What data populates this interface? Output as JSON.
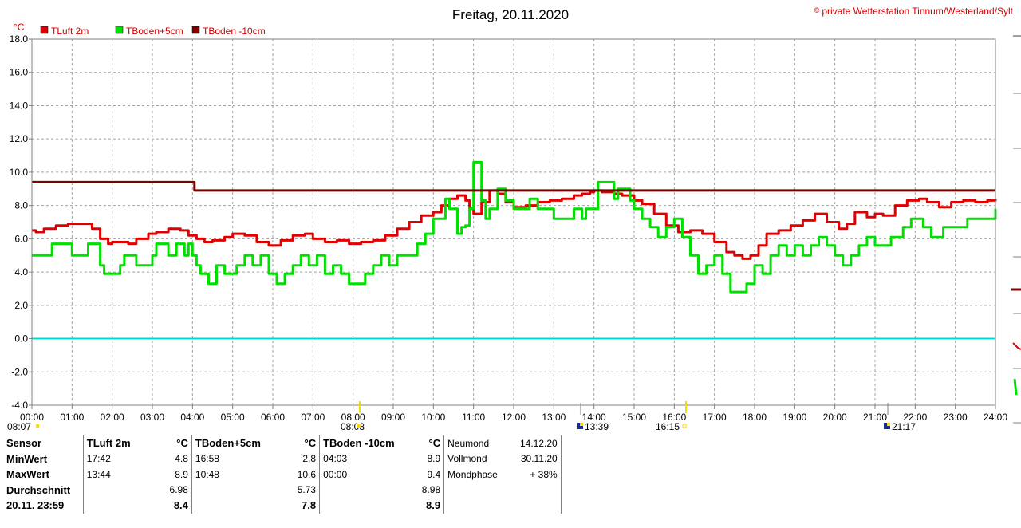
{
  "header": {
    "title": "Freitag, 20.11.2020",
    "copyright_symbol": "©",
    "copyright_text": "private Wetterstation Tinnum/Westerland/Sylt"
  },
  "chart_data": {
    "type": "line",
    "ylabel": "°C",
    "ylim": [
      -4,
      18
    ],
    "yticks": [
      "18.0",
      "16.0",
      "14.0",
      "12.0",
      "10.0",
      "8.0",
      "6.0",
      "4.0",
      "2.0",
      "0.0",
      "-2.0",
      "-4.0"
    ],
    "xlim": [
      0,
      24
    ],
    "xticks": [
      "00:00",
      "01:00",
      "02:00",
      "03:00",
      "04:00",
      "05:00",
      "06:00",
      "07:00",
      "08:00",
      "09:00",
      "10:00",
      "11:00",
      "12:00",
      "13:00",
      "14:00",
      "15:00",
      "16:00",
      "17:00",
      "18:00",
      "19:00",
      "20:00",
      "21:00",
      "22:00",
      "23:00",
      "24:00"
    ],
    "grid": true,
    "legend_position": "top-left",
    "zero_line": {
      "y": 0,
      "color": "#00d8d8"
    },
    "series": [
      {
        "name": "TLuft 2m",
        "color": "#e00000",
        "x": [
          0,
          0.1,
          0.3,
          0.6,
          0.9,
          1.2,
          1.5,
          1.7,
          1.9,
          2.0,
          2.2,
          2.4,
          2.6,
          2.9,
          3.1,
          3.4,
          3.7,
          3.9,
          4.1,
          4.3,
          4.5,
          4.8,
          5.0,
          5.3,
          5.6,
          5.9,
          6.2,
          6.5,
          6.8,
          7.0,
          7.3,
          7.6,
          7.9,
          8.2,
          8.5,
          8.8,
          9.1,
          9.4,
          9.7,
          10.0,
          10.2,
          10.4,
          10.6,
          10.8,
          10.9,
          11.0,
          11.2,
          11.4,
          11.6,
          11.8,
          12.0,
          12.3,
          12.6,
          12.9,
          13.2,
          13.5,
          13.7,
          13.9,
          14.0,
          14.2,
          14.5,
          14.7,
          15.0,
          15.2,
          15.5,
          15.8,
          16.1,
          16.4,
          16.7,
          17.0,
          17.3,
          17.5,
          17.7,
          17.9,
          18.1,
          18.3,
          18.6,
          18.9,
          19.2,
          19.5,
          19.8,
          20.1,
          20.3,
          20.5,
          20.8,
          21.0,
          21.2,
          21.5,
          21.8,
          22.1,
          22.3,
          22.6,
          22.9,
          23.2,
          23.5,
          23.8,
          24.0
        ],
        "values": [
          6.5,
          6.4,
          6.6,
          6.8,
          6.9,
          6.9,
          6.6,
          6.0,
          5.7,
          5.8,
          5.8,
          5.7,
          6.0,
          6.3,
          6.4,
          6.6,
          6.5,
          6.2,
          6.0,
          5.8,
          5.9,
          6.1,
          6.3,
          6.2,
          5.8,
          5.6,
          5.9,
          6.2,
          6.3,
          6.0,
          5.8,
          5.9,
          5.7,
          5.8,
          5.9,
          6.2,
          6.6,
          7.0,
          7.4,
          7.6,
          8.0,
          8.4,
          8.6,
          8.3,
          7.8,
          7.5,
          8.2,
          8.9,
          8.7,
          8.2,
          7.9,
          8.0,
          8.2,
          8.3,
          8.4,
          8.6,
          8.7,
          8.8,
          8.9,
          8.8,
          8.7,
          8.6,
          8.3,
          8.1,
          7.5,
          6.8,
          6.4,
          6.5,
          6.3,
          5.8,
          5.2,
          5.0,
          4.8,
          5.0,
          5.6,
          6.3,
          6.5,
          6.8,
          7.1,
          7.5,
          7.0,
          6.6,
          6.9,
          7.6,
          7.3,
          7.5,
          7.4,
          8.0,
          8.3,
          8.4,
          8.2,
          7.9,
          8.2,
          8.3,
          8.2,
          8.3,
          8.4
        ]
      },
      {
        "name": "TBoden+5cm",
        "color": "#00e000",
        "x": [
          0,
          0.4,
          0.5,
          0.9,
          1.0,
          1.4,
          1.5,
          1.7,
          1.8,
          2.0,
          2.2,
          2.3,
          2.6,
          2.8,
          3.0,
          3.1,
          3.4,
          3.6,
          3.8,
          3.9,
          4.0,
          4.1,
          4.2,
          4.4,
          4.6,
          4.8,
          5.1,
          5.3,
          5.5,
          5.7,
          5.9,
          6.1,
          6.3,
          6.5,
          6.7,
          6.9,
          7.1,
          7.3,
          7.5,
          7.7,
          7.9,
          8.1,
          8.3,
          8.5,
          8.7,
          8.9,
          9.1,
          9.3,
          9.6,
          9.8,
          10.0,
          10.1,
          10.3,
          10.4,
          10.6,
          10.7,
          10.8,
          10.9,
          11.0,
          11.2,
          11.3,
          11.4,
          11.6,
          11.8,
          12.0,
          12.2,
          12.4,
          12.6,
          12.8,
          13.0,
          13.2,
          13.5,
          13.7,
          13.8,
          14.1,
          14.3,
          14.5,
          14.6,
          14.9,
          15.0,
          15.2,
          15.4,
          15.6,
          15.8,
          16.0,
          16.2,
          16.4,
          16.6,
          16.8,
          17.0,
          17.2,
          17.4,
          17.6,
          17.8,
          18.0,
          18.2,
          18.4,
          18.6,
          18.8,
          19.0,
          19.2,
          19.4,
          19.6,
          19.8,
          20.0,
          20.2,
          20.4,
          20.6,
          20.8,
          21.0,
          21.2,
          21.4,
          21.7,
          21.9,
          22.2,
          22.4,
          22.7,
          23.0,
          23.3,
          23.5,
          23.8,
          24.0
        ],
        "values": [
          5.0,
          5.0,
          5.7,
          5.7,
          5.0,
          5.7,
          5.7,
          4.4,
          3.9,
          3.9,
          4.4,
          5.0,
          4.4,
          4.4,
          5.0,
          5.7,
          5.0,
          5.7,
          5.0,
          5.7,
          5.0,
          4.4,
          3.9,
          3.3,
          4.4,
          3.9,
          4.4,
          5.0,
          4.4,
          5.0,
          3.9,
          3.3,
          3.9,
          4.4,
          5.0,
          4.4,
          5.0,
          3.9,
          4.4,
          3.9,
          3.3,
          3.3,
          3.9,
          4.4,
          5.0,
          4.4,
          5.0,
          5.0,
          5.7,
          6.3,
          7.2,
          7.2,
          8.4,
          7.8,
          6.3,
          6.7,
          6.8,
          7.8,
          10.6,
          8.3,
          7.2,
          7.8,
          9.0,
          8.3,
          7.8,
          7.8,
          8.4,
          7.8,
          7.8,
          7.2,
          7.2,
          7.8,
          7.2,
          7.8,
          9.4,
          9.4,
          8.4,
          9.0,
          8.3,
          7.8,
          7.2,
          6.7,
          6.1,
          6.7,
          7.2,
          6.1,
          5.0,
          3.9,
          4.4,
          5.0,
          3.9,
          2.8,
          2.8,
          3.3,
          4.4,
          3.9,
          5.0,
          5.6,
          5.0,
          5.6,
          5.0,
          5.6,
          6.1,
          5.6,
          5.0,
          4.4,
          5.0,
          5.6,
          6.1,
          5.6,
          5.6,
          6.1,
          6.7,
          7.2,
          6.7,
          6.1,
          6.7,
          6.7,
          7.2,
          7.2,
          7.2,
          7.8
        ]
      },
      {
        "name": "TBoden -10cm",
        "color": "#800000",
        "x": [
          0,
          4.0,
          4.05,
          24.0
        ],
        "values": [
          9.4,
          9.4,
          8.9,
          8.9
        ]
      }
    ]
  },
  "markers": {
    "bottom_left_time": "08:07",
    "sunrise_time": "08:08",
    "moon_time_1": "13:39",
    "sunset_time": "16:15",
    "moon_time_2": "21:17"
  },
  "stats": {
    "col_headers": {
      "sensor": "Sensor",
      "tluft": "TLuft 2m",
      "tb5": "TBoden+5cm",
      "tb10": "TBoden -10cm",
      "unit": "°C"
    },
    "rows": {
      "min": {
        "label": "MinWert",
        "tluft_time": "17:42",
        "tluft_val": "4.8",
        "tb5_time": "16:58",
        "tb5_val": "2.8",
        "tb10_time": "04:03",
        "tb10_val": "8.9"
      },
      "max": {
        "label": "MaxWert",
        "tluft_time": "13:44",
        "tluft_val": "8.9",
        "tb5_time": "10:48",
        "tb5_val": "10.6",
        "tb10_time": "00:00",
        "tb10_val": "9.4"
      },
      "avg": {
        "label": "Durchschnitt",
        "tluft_val": "6.98",
        "tb5_val": "5.73",
        "tb10_val": "8.98"
      },
      "last": {
        "label": "20.11. 23:59",
        "tluft_val": "8.4",
        "tb5_val": "7.8",
        "tb10_val": "8.9"
      }
    },
    "moon": {
      "neumond_label": "Neumond",
      "neumond_date": "14.12.20",
      "vollmond_label": "Vollmond",
      "vollmond_date": "30.11.20",
      "phase_label": "Mondphase",
      "phase_value": "+ 38%"
    }
  }
}
